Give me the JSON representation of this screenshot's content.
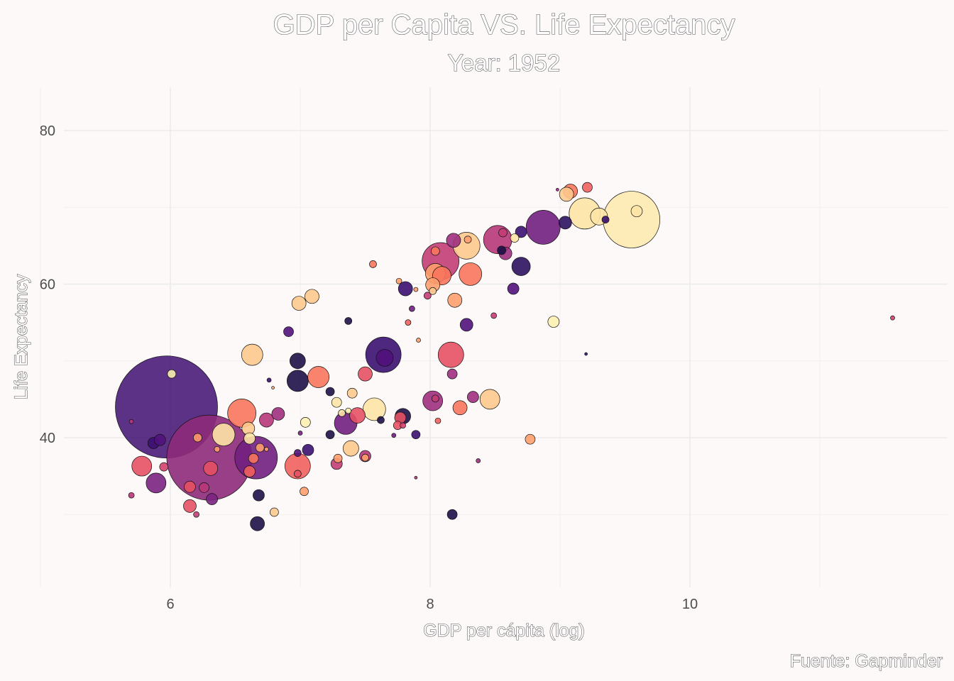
{
  "chart_data": {
    "type": "scatter",
    "title": "GDP per Capita VS. Life Expectancy",
    "subtitle": "Year: 1952",
    "xlabel": "GDP per cápita (log)",
    "ylabel": "Life Expectancy",
    "caption": "Fuente: Gapminder",
    "x_scale": "log (natural) of GDP per capita",
    "xlim": [
      5.15,
      11.8
    ],
    "ylim": [
      21.5,
      85.5
    ],
    "x_ticks": [
      6,
      8,
      10
    ],
    "y_ticks": [
      40,
      60,
      80
    ],
    "grid": true,
    "legend": "none",
    "size_encodes": "population",
    "color_scale": "magma",
    "points": [
      {
        "x": 5.97,
        "y": 44.0,
        "r": 72,
        "c": "#4a1c7a"
      },
      {
        "x": 6.3,
        "y": 37.4,
        "r": 60,
        "c": "#8e2a7a"
      },
      {
        "x": 6.66,
        "y": 37.4,
        "r": 30,
        "c": "#721f81"
      },
      {
        "x": 6.01,
        "y": 48.3,
        "r": 6,
        "c": "#fcf0b0"
      },
      {
        "x": 5.78,
        "y": 36.3,
        "r": 14,
        "c": "#e65164"
      },
      {
        "x": 5.89,
        "y": 34.1,
        "r": 14,
        "c": "#7b2382"
      },
      {
        "x": 5.7,
        "y": 42.1,
        "r": 3,
        "c": "#b73779"
      },
      {
        "x": 5.87,
        "y": 39.3,
        "r": 8,
        "c": "#3b0f70"
      },
      {
        "x": 5.92,
        "y": 39.7,
        "r": 8,
        "c": "#51127c"
      },
      {
        "x": 5.95,
        "y": 36.2,
        "r": 6,
        "c": "#d3436e"
      },
      {
        "x": 5.7,
        "y": 32.5,
        "r": 4,
        "c": "#b73779"
      },
      {
        "x": 6.15,
        "y": 33.6,
        "r": 8,
        "c": "#e65164"
      },
      {
        "x": 6.15,
        "y": 31.1,
        "r": 9,
        "c": "#e65164"
      },
      {
        "x": 6.2,
        "y": 30.0,
        "r": 4,
        "c": "#c33d74"
      },
      {
        "x": 6.32,
        "y": 32.0,
        "r": 8,
        "c": "#7b2382"
      },
      {
        "x": 6.26,
        "y": 33.5,
        "r": 7,
        "c": "#b73779"
      },
      {
        "x": 6.31,
        "y": 36.0,
        "r": 10,
        "c": "#e65164"
      },
      {
        "x": 6.21,
        "y": 40.0,
        "r": 6,
        "c": "#fd9a6a"
      },
      {
        "x": 6.36,
        "y": 38.5,
        "r": 4,
        "c": "#fe9f6d"
      },
      {
        "x": 6.41,
        "y": 40.4,
        "r": 16,
        "c": "#fde4a5"
      },
      {
        "x": 6.55,
        "y": 43.2,
        "r": 20,
        "c": "#f8765c"
      },
      {
        "x": 6.6,
        "y": 41.2,
        "r": 9,
        "c": "#fec98d"
      },
      {
        "x": 6.61,
        "y": 39.9,
        "r": 8,
        "c": "#fde4a5"
      },
      {
        "x": 6.61,
        "y": 35.6,
        "r": 8,
        "c": "#f1605d"
      },
      {
        "x": 6.64,
        "y": 37.3,
        "r": 7,
        "c": "#f8765c"
      },
      {
        "x": 6.69,
        "y": 38.7,
        "r": 6,
        "c": "#fe9f6d"
      },
      {
        "x": 6.68,
        "y": 32.5,
        "r": 8,
        "c": "#1d1147"
      },
      {
        "x": 6.67,
        "y": 28.8,
        "r": 10,
        "c": "#1d1147"
      },
      {
        "x": 6.74,
        "y": 42.3,
        "r": 10,
        "c": "#b73779"
      },
      {
        "x": 6.83,
        "y": 43.1,
        "r": 9,
        "c": "#9f2f7f"
      },
      {
        "x": 6.74,
        "y": 38.5,
        "r": 3,
        "c": "#fe9f6d"
      },
      {
        "x": 6.8,
        "y": 30.3,
        "r": 6,
        "c": "#fec98d"
      },
      {
        "x": 6.63,
        "y": 50.8,
        "r": 15,
        "c": "#fec98d"
      },
      {
        "x": 6.76,
        "y": 47.5,
        "r": 3,
        "c": "#3b0f70"
      },
      {
        "x": 6.79,
        "y": 46.5,
        "r": 2,
        "c": "#fe9f6d"
      },
      {
        "x": 6.91,
        "y": 53.8,
        "r": 7,
        "c": "#51127c"
      },
      {
        "x": 6.99,
        "y": 57.5,
        "r": 10,
        "c": "#fec98d"
      },
      {
        "x": 7.09,
        "y": 58.4,
        "r": 10,
        "c": "#fec98d"
      },
      {
        "x": 6.98,
        "y": 47.4,
        "r": 15,
        "c": "#1d1147"
      },
      {
        "x": 6.98,
        "y": 50.0,
        "r": 11,
        "c": "#1d1147"
      },
      {
        "x": 7.14,
        "y": 47.9,
        "r": 15,
        "c": "#f8765c"
      },
      {
        "x": 7.04,
        "y": 42.0,
        "r": 7,
        "c": "#fcf0b0"
      },
      {
        "x": 7.0,
        "y": 40.6,
        "r": 3,
        "c": "#7b2382"
      },
      {
        "x": 7.06,
        "y": 38.4,
        "r": 8,
        "c": "#3b0f70"
      },
      {
        "x": 6.98,
        "y": 38.0,
        "r": 5,
        "c": "#51127c"
      },
      {
        "x": 6.98,
        "y": 36.3,
        "r": 18,
        "c": "#f1605d"
      },
      {
        "x": 6.98,
        "y": 35.3,
        "r": 5,
        "c": "#e65164"
      },
      {
        "x": 7.03,
        "y": 33.0,
        "r": 6,
        "c": "#fe9f6d"
      },
      {
        "x": 7.23,
        "y": 46.0,
        "r": 6,
        "c": "#1d1147"
      },
      {
        "x": 7.23,
        "y": 40.4,
        "r": 6,
        "c": "#1d1147"
      },
      {
        "x": 7.28,
        "y": 44.6,
        "r": 7,
        "c": "#fde4a5"
      },
      {
        "x": 7.32,
        "y": 43.2,
        "r": 5,
        "c": "#fde4a5"
      },
      {
        "x": 7.35,
        "y": 41.9,
        "r": 16,
        "c": "#721f81"
      },
      {
        "x": 7.28,
        "y": 36.6,
        "r": 8,
        "c": "#c33d74"
      },
      {
        "x": 7.29,
        "y": 37.3,
        "r": 6,
        "c": "#fe9f6d"
      },
      {
        "x": 7.39,
        "y": 38.6,
        "r": 11,
        "c": "#fec98d"
      },
      {
        "x": 7.4,
        "y": 45.8,
        "r": 7,
        "c": "#fec98d"
      },
      {
        "x": 7.37,
        "y": 43.5,
        "r": 4,
        "c": "#fcf0b0"
      },
      {
        "x": 7.44,
        "y": 42.9,
        "r": 11,
        "c": "#e65164"
      },
      {
        "x": 7.5,
        "y": 48.3,
        "r": 10,
        "c": "#e65164"
      },
      {
        "x": 7.5,
        "y": 37.6,
        "r": 8,
        "c": "#b73779"
      },
      {
        "x": 7.5,
        "y": 37.4,
        "r": 5,
        "c": "#fe9f6d"
      },
      {
        "x": 7.37,
        "y": 55.2,
        "r": 5,
        "c": "#1d1147"
      },
      {
        "x": 7.56,
        "y": 62.6,
        "r": 5,
        "c": "#f8765c"
      },
      {
        "x": 7.57,
        "y": 43.7,
        "r": 16,
        "c": "#fde4a5"
      },
      {
        "x": 7.62,
        "y": 42.3,
        "r": 5,
        "c": "#1d1147"
      },
      {
        "x": 7.64,
        "y": 50.8,
        "r": 25,
        "c": "#3b0f70"
      },
      {
        "x": 7.65,
        "y": 50.4,
        "r": 12,
        "c": "#51127c"
      },
      {
        "x": 7.72,
        "y": 40.3,
        "r": 3,
        "c": "#721f81"
      },
      {
        "x": 7.75,
        "y": 41.6,
        "r": 6,
        "c": "#e65164"
      },
      {
        "x": 7.77,
        "y": 42.6,
        "r": 8,
        "c": "#e65164"
      },
      {
        "x": 7.79,
        "y": 42.8,
        "r": 11,
        "c": "#1d1147"
      },
      {
        "x": 7.79,
        "y": 41.6,
        "r": 4,
        "c": "#d3436e"
      },
      {
        "x": 7.76,
        "y": 60.4,
        "r": 4,
        "c": "#fe9f6d"
      },
      {
        "x": 7.81,
        "y": 59.4,
        "r": 10,
        "c": "#3b0f70"
      },
      {
        "x": 7.83,
        "y": 55.0,
        "r": 4,
        "c": "#f1605d"
      },
      {
        "x": 7.86,
        "y": 56.8,
        "r": 4,
        "c": "#721f81"
      },
      {
        "x": 7.91,
        "y": 52.7,
        "r": 3,
        "c": "#fe9f6d"
      },
      {
        "x": 7.89,
        "y": 59.3,
        "r": 3,
        "c": "#fe9f6d"
      },
      {
        "x": 7.89,
        "y": 40.4,
        "r": 6,
        "c": "#3b0f70"
      },
      {
        "x": 7.89,
        "y": 34.8,
        "r": 2,
        "c": "#b73779"
      },
      {
        "x": 7.98,
        "y": 58.5,
        "r": 5,
        "c": "#c33d74"
      },
      {
        "x": 8.02,
        "y": 59.9,
        "r": 10,
        "c": "#fe9f6d"
      },
      {
        "x": 8.02,
        "y": 59.1,
        "r": 5,
        "c": "#fec98d"
      },
      {
        "x": 8.04,
        "y": 61.4,
        "r": 14,
        "c": "#fe9f6d"
      },
      {
        "x": 8.04,
        "y": 64.3,
        "r": 6,
        "c": "#f8765c"
      },
      {
        "x": 8.08,
        "y": 63.0,
        "r": 26,
        "c": "#c33d74"
      },
      {
        "x": 8.09,
        "y": 61.1,
        "r": 13,
        "c": "#f8765c"
      },
      {
        "x": 8.18,
        "y": 65.7,
        "r": 10,
        "c": "#9f2f7f"
      },
      {
        "x": 8.28,
        "y": 65.0,
        "r": 19,
        "c": "#fec98d"
      },
      {
        "x": 8.29,
        "y": 65.8,
        "r": 5,
        "c": "#fe9f6d"
      },
      {
        "x": 8.31,
        "y": 61.3,
        "r": 16,
        "c": "#f8765c"
      },
      {
        "x": 8.19,
        "y": 57.9,
        "r": 10,
        "c": "#fe9f6d"
      },
      {
        "x": 8.16,
        "y": 50.8,
        "r": 18,
        "c": "#e65164"
      },
      {
        "x": 8.17,
        "y": 48.3,
        "r": 7,
        "c": "#9f2f7f"
      },
      {
        "x": 8.28,
        "y": 54.7,
        "r": 9,
        "c": "#51127c"
      },
      {
        "x": 8.02,
        "y": 44.8,
        "r": 14,
        "c": "#9f2f7f"
      },
      {
        "x": 8.04,
        "y": 45.1,
        "r": 5,
        "c": "#c33d74"
      },
      {
        "x": 8.06,
        "y": 42.2,
        "r": 4,
        "c": "#f1605d"
      },
      {
        "x": 8.23,
        "y": 43.9,
        "r": 10,
        "c": "#f8765c"
      },
      {
        "x": 8.33,
        "y": 45.3,
        "r": 8,
        "c": "#9f2f7f"
      },
      {
        "x": 8.46,
        "y": 45.0,
        "r": 14,
        "c": "#fec98d"
      },
      {
        "x": 8.37,
        "y": 37.0,
        "r": 3,
        "c": "#9f2f7f"
      },
      {
        "x": 8.17,
        "y": 30.0,
        "r": 7,
        "c": "#1d1147"
      },
      {
        "x": 8.49,
        "y": 55.9,
        "r": 4,
        "c": "#c33d74"
      },
      {
        "x": 8.52,
        "y": 65.8,
        "r": 20,
        "c": "#b73779"
      },
      {
        "x": 8.55,
        "y": 64.4,
        "r": 6,
        "c": "#1d1147"
      },
      {
        "x": 8.56,
        "y": 66.7,
        "r": 6,
        "c": "#c33d74"
      },
      {
        "x": 8.58,
        "y": 64.0,
        "r": 9,
        "c": "#9f2f7f"
      },
      {
        "x": 8.65,
        "y": 66.0,
        "r": 6,
        "c": "#fde4a5"
      },
      {
        "x": 8.7,
        "y": 66.8,
        "r": 8,
        "c": "#3b0f70"
      },
      {
        "x": 8.64,
        "y": 59.4,
        "r": 8,
        "c": "#51127c"
      },
      {
        "x": 8.7,
        "y": 62.3,
        "r": 13,
        "c": "#2c115f"
      },
      {
        "x": 8.77,
        "y": 39.8,
        "r": 7,
        "c": "#fe9f6d"
      },
      {
        "x": 8.87,
        "y": 67.4,
        "r": 24,
        "c": "#721f81"
      },
      {
        "x": 8.95,
        "y": 55.1,
        "r": 8,
        "c": "#fcf0b0"
      },
      {
        "x": 9.04,
        "y": 68.0,
        "r": 9,
        "c": "#2c115f"
      },
      {
        "x": 8.98,
        "y": 72.3,
        "r": 2,
        "c": "#9f2f7f"
      },
      {
        "x": 9.08,
        "y": 72.1,
        "r": 10,
        "c": "#f8765c"
      },
      {
        "x": 9.05,
        "y": 71.7,
        "r": 10,
        "c": "#fec98d"
      },
      {
        "x": 9.21,
        "y": 72.6,
        "r": 7,
        "c": "#f1605d"
      },
      {
        "x": 9.19,
        "y": 69.2,
        "r": 22,
        "c": "#fde4a5"
      },
      {
        "x": 9.3,
        "y": 68.8,
        "r": 12,
        "c": "#fde4a5"
      },
      {
        "x": 9.35,
        "y": 68.4,
        "r": 5,
        "c": "#3b0f70"
      },
      {
        "x": 9.55,
        "y": 68.4,
        "r": 40,
        "c": "#fde9b0"
      },
      {
        "x": 9.59,
        "y": 69.5,
        "r": 8,
        "c": "#fde4a5"
      },
      {
        "x": 9.2,
        "y": 50.9,
        "r": 2,
        "c": "#2c115f"
      },
      {
        "x": 11.56,
        "y": 55.6,
        "r": 3,
        "c": "#d3436e"
      }
    ]
  }
}
